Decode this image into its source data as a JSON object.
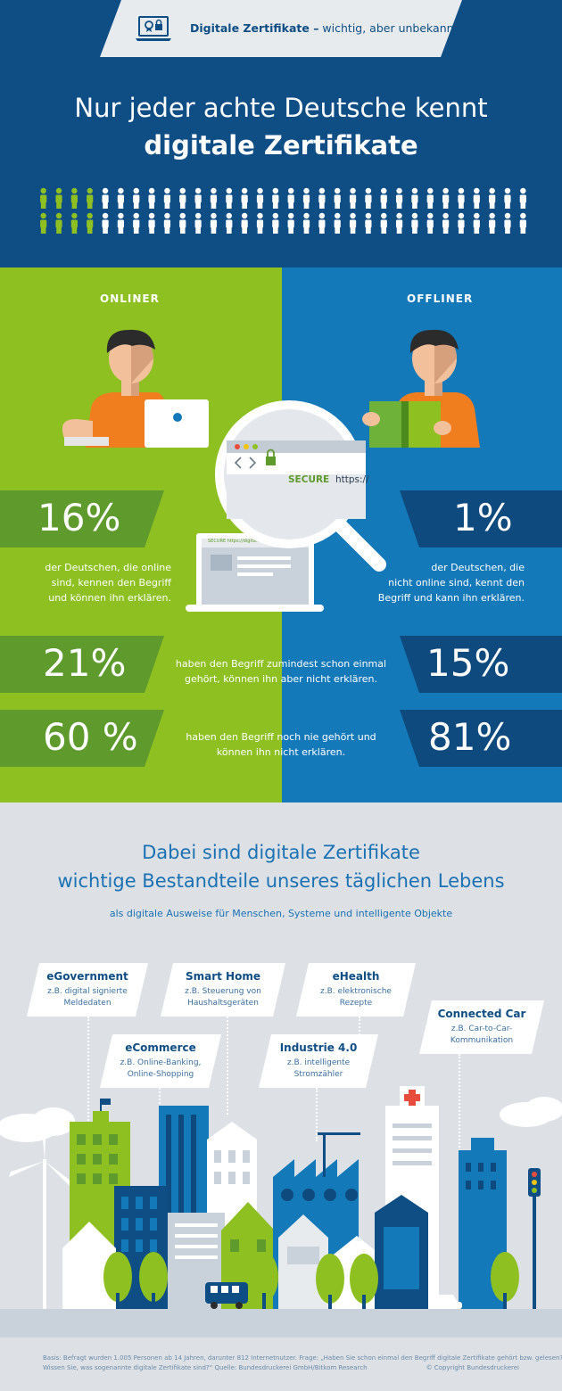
{
  "header": {
    "title_bold": "Digitale Zertifikate –",
    "title_rest": " wichtig, aber unbekannt",
    "headline_line1": "Nur jeder achte Deutsche kennt",
    "headline_line2": "digitale Zertifikate",
    "people_known": 8,
    "people_total": 64
  },
  "comparison": {
    "left_label": "ONLINER",
    "right_label": "OFFLINER",
    "browser_secure": "SECURE",
    "browser_url": "https://",
    "laptop_url": "SECURE https://digita...",
    "rows": [
      {
        "left_value": "16%",
        "left_text": [
          "der Deutschen, die online",
          "sind, kennen den Begriff",
          "und können ihn erklären."
        ],
        "right_value": "1%",
        "right_text": [
          "der Deutschen, die",
          "nicht online sind, kennt den",
          "Begriff und kann ihn erklären."
        ]
      },
      {
        "left_value": "21%",
        "right_value": "15%",
        "mid_text": [
          "haben den Begriff zumindest schon einmal",
          "gehört, können ihn aber nicht erklären."
        ]
      },
      {
        "left_value": "60 %",
        "right_value": "81%",
        "mid_text": [
          "haben den Begriff noch nie gehört und",
          "können ihn nicht erklären."
        ]
      }
    ]
  },
  "uses": {
    "title_line1": "Dabei sind digitale Zertifikate",
    "title_line2": "wichtige Bestandteile unseres täglichen Lebens",
    "subtitle": "als digitale Ausweise für Menschen, Systeme und intelligente Objekte",
    "cards": [
      {
        "title": "eGovernment",
        "lines": [
          "z.B. digital signierte",
          "Meldedaten"
        ]
      },
      {
        "title": "Smart Home",
        "lines": [
          "z.B. Steuerung von",
          "Haushaltsgeräten"
        ]
      },
      {
        "title": "eHealth",
        "lines": [
          "z.B. elektronische",
          "Rezepte"
        ]
      },
      {
        "title": "Connected Car",
        "lines": [
          "z.B. Car-to-Car-",
          "Kommunikation"
        ]
      },
      {
        "title": "eCommerce",
        "lines": [
          "z.B. Online-Banking,",
          "Online-Shopping"
        ]
      },
      {
        "title": "Industrie 4.0",
        "lines": [
          "z.B. intelligente",
          "Stromzähler"
        ]
      }
    ]
  },
  "footer": {
    "line1": "Basis: Befragt wurden 1.005 Personen ab 14 Jahren, darunter 812 Internetnutzer. Frage: „Haben Sie schon einmal den Begriff digitale Zertifikate gehört bzw. gelesen?",
    "line2": "Wissen Sie, was sogenannte digitale Zertifikate sind?“ Quelle: Bundesdruckerei GmbH/Bitkom Research",
    "copyright": "© Copyright Bundesdruckerei"
  },
  "colors": {
    "navy": "#0f4e85",
    "green": "#8ec021",
    "blue": "#1379b9",
    "dark_green": "#5e9a2c",
    "dark_blue": "#0e4a7e"
  }
}
